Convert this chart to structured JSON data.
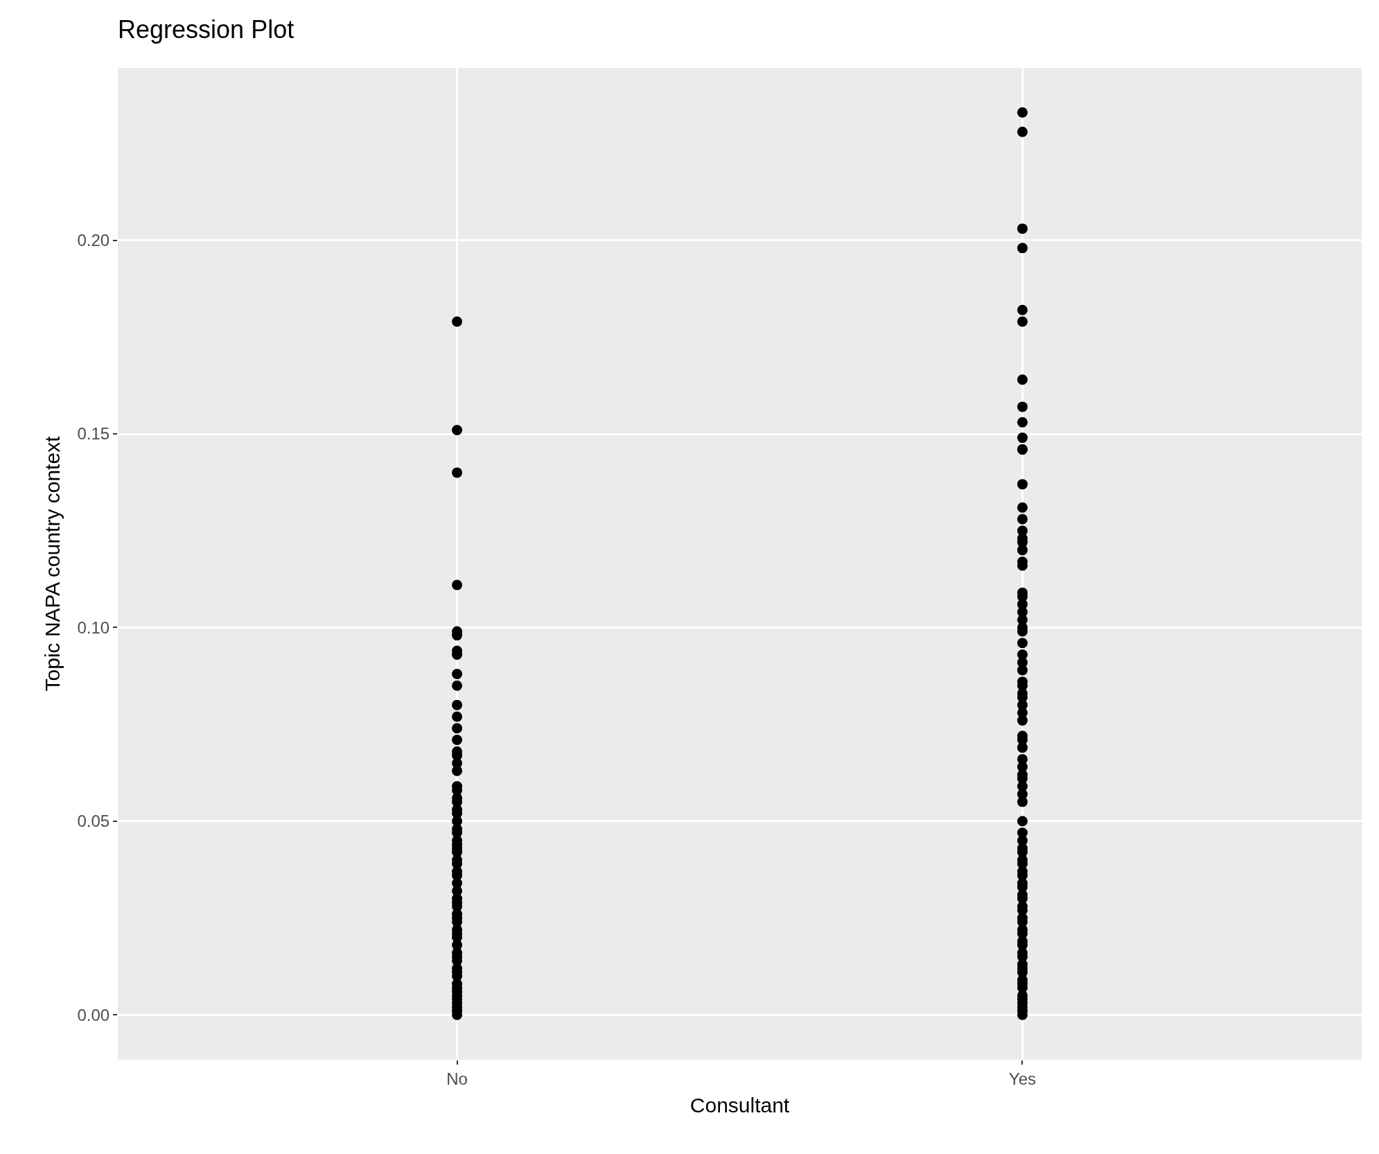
{
  "chart_data": {
    "type": "scatter",
    "title": "Regression Plot",
    "xlabel": "Consultant",
    "ylabel": "Topic NAPA country context",
    "categories": [
      "No",
      "Yes"
    ],
    "ylim": [
      -0.0116,
      0.2445
    ],
    "yticks": [
      {
        "value": 0,
        "label": "0.00"
      },
      {
        "value": 0.05,
        "label": "0.05"
      },
      {
        "value": 0.1,
        "label": "0.10"
      },
      {
        "value": 0.15,
        "label": "0.15"
      },
      {
        "value": 0.2,
        "label": "0.20"
      }
    ],
    "grid": true,
    "marker": "circle",
    "series": [
      {
        "color": "#000000",
        "x": [
          "No",
          "No",
          "No",
          "No",
          "No",
          "No",
          "No",
          "No",
          "No",
          "No",
          "No",
          "No",
          "No",
          "No",
          "No",
          "No",
          "No",
          "No",
          "No",
          "No",
          "No",
          "No",
          "No",
          "No",
          "No",
          "No",
          "No",
          "No",
          "No",
          "No",
          "No",
          "No",
          "No",
          "No",
          "No",
          "No",
          "No",
          "No",
          "No",
          "No",
          "No",
          "No",
          "No",
          "No",
          "No",
          "No",
          "No",
          "No",
          "No",
          "No",
          "No",
          "No",
          "No",
          "No",
          "No",
          "No",
          "No",
          "No",
          "No",
          "No",
          "No",
          "No"
        ],
        "values": [
          0.179,
          0.151,
          0.14,
          0.111,
          0.099,
          0.098,
          0.094,
          0.093,
          0.088,
          0.085,
          0.08,
          0.077,
          0.074,
          0.071,
          0.068,
          0.067,
          0.065,
          0.063,
          0.059,
          0.058,
          0.056,
          0.055,
          0.053,
          0.052,
          0.05,
          0.048,
          0.047,
          0.045,
          0.044,
          0.043,
          0.042,
          0.04,
          0.039,
          0.037,
          0.036,
          0.034,
          0.032,
          0.03,
          0.029,
          0.028,
          0.026,
          0.025,
          0.024,
          0.022,
          0.021,
          0.02,
          0.018,
          0.016,
          0.015,
          0.014,
          0.012,
          0.011,
          0.01,
          0.008,
          0.007,
          0.006,
          0.005,
          0.004,
          0.003,
          0.002,
          0.001,
          0.0
        ]
      },
      {
        "color": "#000000",
        "x": [
          "Yes",
          "Yes",
          "Yes",
          "Yes",
          "Yes",
          "Yes",
          "Yes",
          "Yes",
          "Yes",
          "Yes",
          "Yes",
          "Yes",
          "Yes",
          "Yes",
          "Yes",
          "Yes",
          "Yes",
          "Yes",
          "Yes",
          "Yes",
          "Yes",
          "Yes",
          "Yes",
          "Yes",
          "Yes",
          "Yes",
          "Yes",
          "Yes",
          "Yes",
          "Yes",
          "Yes",
          "Yes",
          "Yes",
          "Yes",
          "Yes",
          "Yes",
          "Yes",
          "Yes",
          "Yes",
          "Yes",
          "Yes",
          "Yes",
          "Yes",
          "Yes",
          "Yes",
          "Yes",
          "Yes",
          "Yes",
          "Yes",
          "Yes",
          "Yes",
          "Yes",
          "Yes",
          "Yes",
          "Yes",
          "Yes",
          "Yes",
          "Yes",
          "Yes",
          "Yes",
          "Yes",
          "Yes",
          "Yes",
          "Yes",
          "Yes",
          "Yes",
          "Yes",
          "Yes",
          "Yes",
          "Yes",
          "Yes",
          "Yes",
          "Yes",
          "Yes",
          "Yes",
          "Yes",
          "Yes",
          "Yes",
          "Yes",
          "Yes",
          "Yes",
          "Yes",
          "Yes",
          "Yes"
        ],
        "values": [
          0.233,
          0.228,
          0.203,
          0.198,
          0.182,
          0.179,
          0.164,
          0.157,
          0.153,
          0.149,
          0.146,
          0.146,
          0.137,
          0.131,
          0.128,
          0.125,
          0.123,
          0.122,
          0.12,
          0.117,
          0.116,
          0.109,
          0.108,
          0.106,
          0.104,
          0.102,
          0.1,
          0.099,
          0.096,
          0.093,
          0.091,
          0.089,
          0.086,
          0.085,
          0.083,
          0.082,
          0.08,
          0.078,
          0.076,
          0.072,
          0.071,
          0.069,
          0.066,
          0.064,
          0.062,
          0.061,
          0.059,
          0.057,
          0.055,
          0.05,
          0.047,
          0.045,
          0.043,
          0.042,
          0.04,
          0.039,
          0.037,
          0.036,
          0.034,
          0.033,
          0.031,
          0.03,
          0.028,
          0.027,
          0.025,
          0.024,
          0.022,
          0.021,
          0.019,
          0.018,
          0.016,
          0.015,
          0.013,
          0.012,
          0.011,
          0.009,
          0.008,
          0.007,
          0.005,
          0.004,
          0.003,
          0.002,
          0.001,
          0.0
        ]
      }
    ]
  }
}
